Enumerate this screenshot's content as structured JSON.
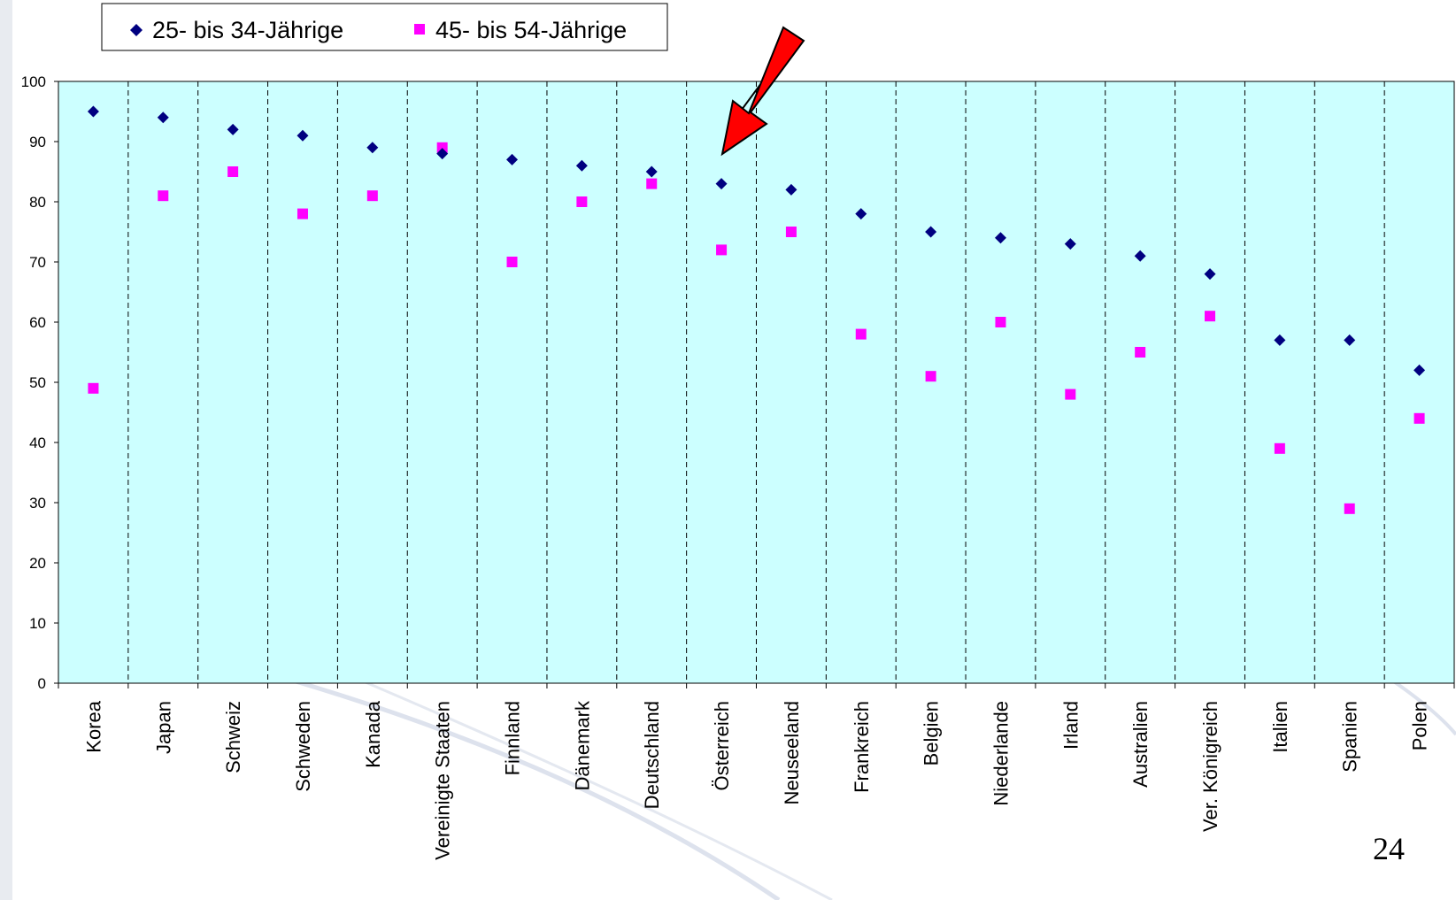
{
  "page_number": "24",
  "colors": {
    "plot_background": "#ccffff",
    "series_1": "#000080",
    "series_2": "#ff00ff",
    "arrow": "#ff0000"
  },
  "chart_data": {
    "type": "scatter",
    "title": "",
    "xlabel": "",
    "ylabel": "",
    "ylim": [
      0,
      100
    ],
    "yticks": [
      0,
      10,
      20,
      30,
      40,
      50,
      60,
      70,
      80,
      90,
      100
    ],
    "grid": "vertical-dashed",
    "legend_position": "top-left",
    "categories": [
      "Korea",
      "Japan",
      "Schweiz",
      "Schweden",
      "Kanada",
      "Vereinigte Staaten",
      "Finnland",
      "Dänemark",
      "Deutschland",
      "Österreich",
      "Neuseeland",
      "Frankreich",
      "Belgien",
      "Niederlande",
      "Irland",
      "Australien",
      "Ver. Königreich",
      "Italien",
      "Spanien",
      "Polen"
    ],
    "series": [
      {
        "name": "25- bis 34-Jährige",
        "marker": "diamond",
        "values": [
          95,
          94,
          92,
          91,
          89,
          88,
          87,
          86,
          85,
          83,
          82,
          78,
          75,
          74,
          73,
          71,
          68,
          57,
          57,
          52
        ]
      },
      {
        "name": "45- bis 54-Jährige",
        "marker": "square",
        "values": [
          49,
          81,
          85,
          78,
          81,
          89,
          70,
          80,
          83,
          72,
          75,
          58,
          51,
          60,
          48,
          55,
          61,
          39,
          29,
          44
        ]
      }
    ],
    "annotations": [
      {
        "type": "arrow",
        "points_to_category": "Österreich"
      }
    ]
  }
}
